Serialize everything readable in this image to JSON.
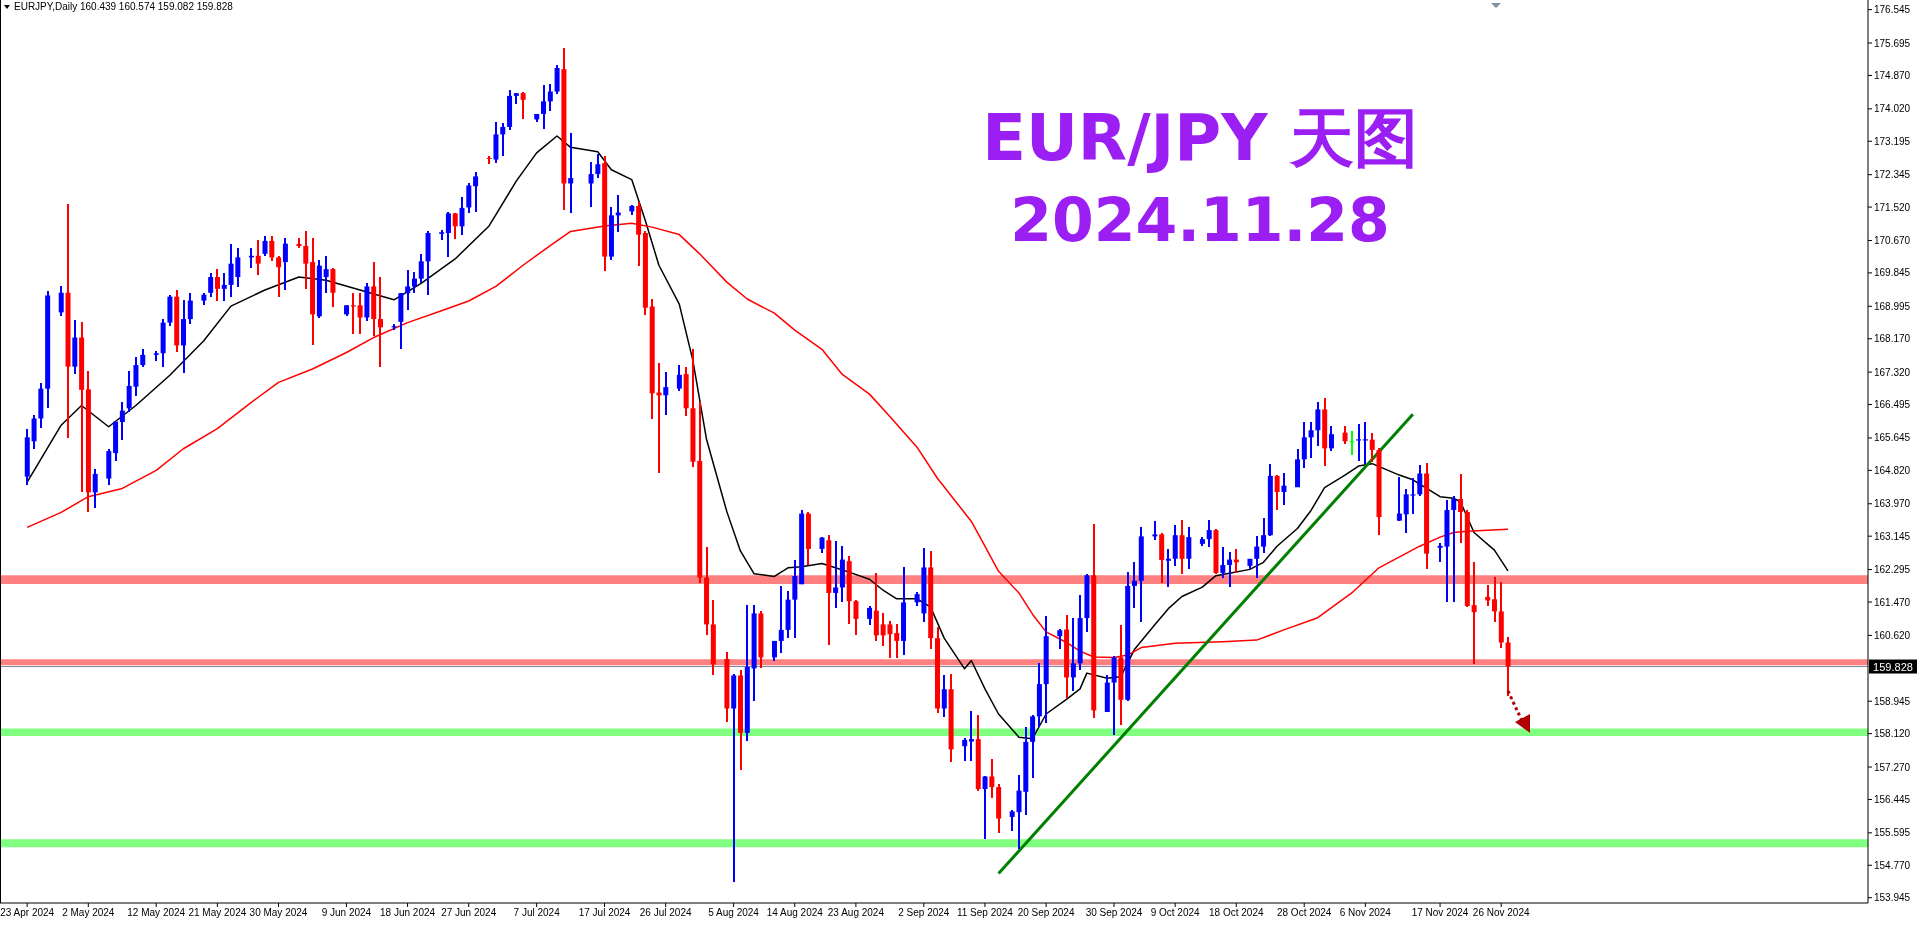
{
  "chart_data": {
    "type": "candlestick",
    "title": "EUR/JPY 天图",
    "subtitle": "2024.11.28",
    "annotations": [
      "EURJPY,Daily 160.439 160.574 159.082 159.828"
    ],
    "x": [
      "2024-04-23",
      "2024-04-24",
      "2024-04-25",
      "2024-04-26",
      "2024-04-28",
      "2024-04-29",
      "2024-04-30",
      "2024-05-01",
      "2024-05-02",
      "2024-05-03",
      "2024-05-05",
      "2024-05-06",
      "2024-05-07",
      "2024-05-08",
      "2024-05-09",
      "2024-05-10",
      "2024-05-12",
      "2024-05-13",
      "2024-05-14",
      "2024-05-15",
      "2024-05-16",
      "2024-05-17",
      "2024-05-19",
      "2024-05-20",
      "2024-05-21",
      "2024-05-22",
      "2024-05-23",
      "2024-05-24",
      "2024-05-26",
      "2024-05-27",
      "2024-05-28",
      "2024-05-29",
      "2024-05-30",
      "2024-05-31",
      "2024-06-02",
      "2024-06-03",
      "2024-06-04",
      "2024-06-05",
      "2024-06-06",
      "2024-06-07",
      "2024-06-09",
      "2024-06-10",
      "2024-06-11",
      "2024-06-12",
      "2024-06-13",
      "2024-06-14",
      "2024-06-16",
      "2024-06-17",
      "2024-06-18",
      "2024-06-19",
      "2024-06-20",
      "2024-06-21",
      "2024-06-23",
      "2024-06-24",
      "2024-06-25",
      "2024-06-26",
      "2024-06-27",
      "2024-06-28",
      "2024-06-30",
      "2024-07-01",
      "2024-07-02",
      "2024-07-03",
      "2024-07-04",
      "2024-07-05",
      "2024-07-07",
      "2024-07-08",
      "2024-07-09",
      "2024-07-10",
      "2024-07-11",
      "2024-07-12",
      "2024-07-15",
      "2024-07-16",
      "2024-07-17",
      "2024-07-18",
      "2024-07-19",
      "2024-07-21",
      "2024-07-22",
      "2024-07-23",
      "2024-07-24",
      "2024-07-25",
      "2024-07-26",
      "2024-07-28",
      "2024-07-29",
      "2024-07-30",
      "2024-07-31",
      "2024-08-01",
      "2024-08-02",
      "2024-08-04",
      "2024-08-05",
      "2024-08-06",
      "2024-08-07",
      "2024-08-08",
      "2024-08-09",
      "2024-08-11",
      "2024-08-12",
      "2024-08-13",
      "2024-08-14",
      "2024-08-15",
      "2024-08-16",
      "2024-08-18",
      "2024-08-19",
      "2024-08-20",
      "2024-08-21",
      "2024-08-22",
      "2024-08-23",
      "2024-08-25",
      "2024-08-26",
      "2024-08-27",
      "2024-08-28",
      "2024-08-29",
      "2024-08-30",
      "2024-09-01",
      "2024-09-02",
      "2024-09-03",
      "2024-09-04",
      "2024-09-05",
      "2024-09-06",
      "2024-09-08",
      "2024-09-09",
      "2024-09-10",
      "2024-09-11",
      "2024-09-12",
      "2024-09-13",
      "2024-09-15",
      "2024-09-16",
      "2024-09-17",
      "2024-09-18",
      "2024-09-19",
      "2024-09-20",
      "2024-09-22",
      "2024-09-23",
      "2024-09-24",
      "2024-09-25",
      "2024-09-26",
      "2024-09-27",
      "2024-09-29",
      "2024-09-30",
      "2024-10-01",
      "2024-10-02",
      "2024-10-03",
      "2024-10-04",
      "2024-10-06",
      "2024-10-07",
      "2024-10-08",
      "2024-10-09",
      "2024-10-10",
      "2024-10-11",
      "2024-10-13",
      "2024-10-14",
      "2024-10-15",
      "2024-10-16",
      "2024-10-17",
      "2024-10-18",
      "2024-10-20",
      "2024-10-21",
      "2024-10-22",
      "2024-10-23",
      "2024-10-24",
      "2024-10-25",
      "2024-10-27",
      "2024-10-28",
      "2024-10-29",
      "2024-10-30",
      "2024-10-31",
      "2024-11-01",
      "2024-11-03",
      "2024-11-04",
      "2024-11-05",
      "2024-11-06",
      "2024-11-07",
      "2024-11-08",
      "2024-11-11",
      "2024-11-12",
      "2024-11-13",
      "2024-11-14",
      "2024-11-15",
      "2024-11-17",
      "2024-11-18",
      "2024-11-19",
      "2024-11-20",
      "2024-11-21",
      "2024-11-22",
      "2024-11-24",
      "2024-11-25",
      "2024-11-26",
      "2024-11-27"
    ],
    "ohlc": [
      [
        164.66,
        165.88,
        164.46,
        165.66
      ],
      [
        165.56,
        166.22,
        165.36,
        166.14
      ],
      [
        166.14,
        167.05,
        165.9,
        166.9
      ],
      [
        166.9,
        169.39,
        166.4,
        169.27
      ],
      [
        168.84,
        169.51,
        168.74,
        169.34
      ],
      [
        169.34,
        171.61,
        165.64,
        167.46
      ],
      [
        167.46,
        168.64,
        167.26,
        168.2
      ],
      [
        168.2,
        168.6,
        164.26,
        166.87
      ],
      [
        166.88,
        167.35,
        163.76,
        164.26
      ],
      [
        164.26,
        164.86,
        163.86,
        164.73
      ],
      [
        164.61,
        165.36,
        164.46,
        165.31
      ],
      [
        165.26,
        166.06,
        165.06,
        166.06
      ],
      [
        166.05,
        166.55,
        165.6,
        166.34
      ],
      [
        166.4,
        167.35,
        166.3,
        166.97
      ],
      [
        166.95,
        167.7,
        166.7,
        167.5
      ],
      [
        167.5,
        167.92,
        167.46,
        167.76
      ],
      [
        167.76,
        167.85,
        167.6,
        167.8
      ],
      [
        167.8,
        168.67,
        167.46,
        168.58
      ],
      [
        168.58,
        169.29,
        168.5,
        169.24
      ],
      [
        169.24,
        169.41,
        167.84,
        168.0
      ],
      [
        168.0,
        169.16,
        167.3,
        168.67
      ],
      [
        168.67,
        169.34,
        168.54,
        169.14
      ],
      [
        169.14,
        169.34,
        169.04,
        169.29
      ],
      [
        169.34,
        169.83,
        169.24,
        169.74
      ],
      [
        169.74,
        169.94,
        169.14,
        169.44
      ],
      [
        169.44,
        169.84,
        169.14,
        169.54
      ],
      [
        169.54,
        170.58,
        169.24,
        170.08
      ],
      [
        169.74,
        170.48,
        169.49,
        170.24
      ],
      [
        170.24,
        170.48,
        169.98,
        170.28
      ],
      [
        170.28,
        170.68,
        169.78,
        170.08
      ],
      [
        170.33,
        170.78,
        170.28,
        170.66
      ],
      [
        170.66,
        170.78,
        170.16,
        170.24
      ],
      [
        170.24,
        170.28,
        169.24,
        169.99
      ],
      [
        170.12,
        170.74,
        169.41,
        170.59
      ],
      [
        170.58,
        170.73,
        170.48,
        170.53
      ],
      [
        170.53,
        170.9,
        169.44,
        170.08
      ],
      [
        170.12,
        170.74,
        168.0,
        168.79
      ],
      [
        168.74,
        170.18,
        168.69,
        170.03
      ],
      [
        169.74,
        170.28,
        169.34,
        169.94
      ],
      [
        169.94,
        169.98,
        168.99,
        169.34
      ],
      [
        168.79,
        169.04,
        168.74,
        169.02
      ],
      [
        169.02,
        169.34,
        168.29,
        168.99
      ],
      [
        169.02,
        169.34,
        168.29,
        168.71
      ],
      [
        168.71,
        169.58,
        168.62,
        169.5
      ],
      [
        169.5,
        170.12,
        168.25,
        168.67
      ],
      [
        168.67,
        169.74,
        167.46,
        168.46
      ],
      [
        168.46,
        168.54,
        168.39,
        168.49
      ],
      [
        168.6,
        169.33,
        167.92,
        169.33
      ],
      [
        169.33,
        169.91,
        168.91,
        169.5
      ],
      [
        169.5,
        169.87,
        169.33,
        169.7
      ],
      [
        169.7,
        170.32,
        169.58,
        170.14
      ],
      [
        170.14,
        170.91,
        169.29,
        170.86
      ],
      [
        170.84,
        170.93,
        170.68,
        170.88
      ],
      [
        170.86,
        171.4,
        170.24,
        171.36
      ],
      [
        171.36,
        171.38,
        170.7,
        171.03
      ],
      [
        171.03,
        171.78,
        170.82,
        171.5
      ],
      [
        171.51,
        172.13,
        171.36,
        172.07
      ],
      [
        172.05,
        172.42,
        171.4,
        172.3
      ],
      [
        172.77,
        172.82,
        172.62,
        172.76
      ],
      [
        172.73,
        173.69,
        172.65,
        173.37
      ],
      [
        173.37,
        173.67,
        172.82,
        173.56
      ],
      [
        173.56,
        174.5,
        173.48,
        174.35
      ],
      [
        174.35,
        174.43,
        174.15,
        174.42
      ],
      [
        174.42,
        174.46,
        173.75,
        174.25
      ],
      [
        173.75,
        173.89,
        173.69,
        173.89
      ],
      [
        173.89,
        174.63,
        173.5,
        174.21
      ],
      [
        174.21,
        174.64,
        173.96,
        174.46
      ],
      [
        174.46,
        175.14,
        174.39,
        175.06
      ],
      [
        175.03,
        175.57,
        171.45,
        172.12
      ],
      [
        172.12,
        173.41,
        171.38,
        172.26
      ],
      [
        172.12,
        172.67,
        171.52,
        172.36
      ],
      [
        172.36,
        172.86,
        172.26,
        172.61
      ],
      [
        172.64,
        172.82,
        169.9,
        170.26
      ],
      [
        170.26,
        171.52,
        170.18,
        171.31
      ],
      [
        171.31,
        171.83,
        170.88,
        171.38
      ],
      [
        171.41,
        171.58,
        171.33,
        171.55
      ],
      [
        171.55,
        171.66,
        170.01,
        170.82
      ],
      [
        170.86,
        170.92,
        168.78,
        168.96
      ],
      [
        168.99,
        169.17,
        166.13,
        166.78
      ],
      [
        166.8,
        167.55,
        164.76,
        166.73
      ],
      [
        166.73,
        167.32,
        166.23,
        166.94
      ],
      [
        166.9,
        167.5,
        166.85,
        167.25
      ],
      [
        167.27,
        167.45,
        166.2,
        166.4
      ],
      [
        166.4,
        167.91,
        164.9,
        165.04
      ],
      [
        165.06,
        166.55,
        161.95,
        162.09
      ],
      [
        162.09,
        162.87,
        160.62,
        160.9
      ],
      [
        160.9,
        161.53,
        159.6,
        159.88
      ],
      [
        160.02,
        160.19,
        158.41,
        158.76
      ],
      [
        158.76,
        159.64,
        154.35,
        159.6
      ],
      [
        159.6,
        159.74,
        157.2,
        158.14
      ],
      [
        158.14,
        161.39,
        157.94,
        159.82
      ],
      [
        159.78,
        161.39,
        158.94,
        161.18
      ],
      [
        161.18,
        161.23,
        159.78,
        160.06
      ],
      [
        160.06,
        160.48,
        159.98,
        160.48
      ],
      [
        160.48,
        161.88,
        160.18,
        160.76
      ],
      [
        160.76,
        161.74,
        160.55,
        161.53
      ],
      [
        161.53,
        162.55,
        160.55,
        162.13
      ],
      [
        161.92,
        163.81,
        161.92,
        163.72
      ],
      [
        163.72,
        163.77,
        162.41,
        162.82
      ],
      [
        162.82,
        163.12,
        162.72,
        163.11
      ],
      [
        163.04,
        163.18,
        160.37,
        161.7
      ],
      [
        161.7,
        163.02,
        161.32,
        161.84
      ],
      [
        161.84,
        162.9,
        161.46,
        162.55
      ],
      [
        162.51,
        162.65,
        160.9,
        161.49
      ],
      [
        161.49,
        161.53,
        160.62,
        161.04
      ],
      [
        161.04,
        161.38,
        160.88,
        161.32
      ],
      [
        161.25,
        162.2,
        160.48,
        160.62
      ],
      [
        160.9,
        161.18,
        160.34,
        160.62
      ],
      [
        160.9,
        160.98,
        160.04,
        160.65
      ],
      [
        160.68,
        160.9,
        160.04,
        160.48
      ],
      [
        160.48,
        162.35,
        160.12,
        161.46
      ],
      [
        161.46,
        161.73,
        161.38,
        161.67
      ],
      [
        161.18,
        162.85,
        160.97,
        162.35
      ],
      [
        162.35,
        162.76,
        160.28,
        160.55
      ],
      [
        160.55,
        160.83,
        158.64,
        158.76
      ],
      [
        158.76,
        159.6,
        158.54,
        159.25
      ],
      [
        159.25,
        159.63,
        157.4,
        157.72
      ],
      [
        157.8,
        158.02,
        157.42,
        157.96
      ],
      [
        157.92,
        158.69,
        157.43,
        157.98
      ],
      [
        157.98,
        158.6,
        156.65,
        156.71
      ],
      [
        156.71,
        157.05,
        155.45,
        157.03
      ],
      [
        157.03,
        157.47,
        156.49,
        156.76
      ],
      [
        156.76,
        156.85,
        155.58,
        155.96
      ],
      [
        156.0,
        156.18,
        155.63,
        156.14
      ],
      [
        156.12,
        157.07,
        155.18,
        156.67
      ],
      [
        156.64,
        158.29,
        156.04,
        157.91
      ],
      [
        157.91,
        158.6,
        157.0,
        158.56
      ],
      [
        158.56,
        159.91,
        158.29,
        159.38
      ],
      [
        159.38,
        161.11,
        158.39,
        160.6
      ],
      [
        160.6,
        160.78,
        160.28,
        160.75
      ],
      [
        160.77,
        161.15,
        159.02,
        159.55
      ],
      [
        159.55,
        161.06,
        159.2,
        159.91
      ],
      [
        159.91,
        161.64,
        159.74,
        161.06
      ],
      [
        161.06,
        162.18,
        160.71,
        162.15
      ],
      [
        162.15,
        163.46,
        158.53,
        158.71
      ],
      [
        158.67,
        159.6,
        158.67,
        159.42
      ],
      [
        159.42,
        160.09,
        158.09,
        160.06
      ],
      [
        160.06,
        160.88,
        158.35,
        158.98
      ],
      [
        158.98,
        162.24,
        158.94,
        161.88
      ],
      [
        161.88,
        162.48,
        161.33,
        162.01
      ],
      [
        162.01,
        163.37,
        160.97,
        163.14
      ],
      [
        163.14,
        163.54,
        163.04,
        163.19
      ],
      [
        163.19,
        163.22,
        161.95,
        162.54
      ],
      [
        162.52,
        162.83,
        161.86,
        162.57
      ],
      [
        162.57,
        163.43,
        162.39,
        163.17
      ],
      [
        163.17,
        163.56,
        162.17,
        162.57
      ],
      [
        162.57,
        163.37,
        162.3,
        163.12
      ],
      [
        162.95,
        163.12,
        162.9,
        163.07
      ],
      [
        163.07,
        163.56,
        162.88,
        163.3
      ],
      [
        163.3,
        163.32,
        162.17,
        162.21
      ],
      [
        162.21,
        162.88,
        162.08,
        162.41
      ],
      [
        162.41,
        162.74,
        161.86,
        162.55
      ],
      [
        162.55,
        162.81,
        162.21,
        162.48
      ],
      [
        162.39,
        162.57,
        162.32,
        162.57
      ],
      [
        162.57,
        163.14,
        162.08,
        162.88
      ],
      [
        162.88,
        163.62,
        162.72,
        163.17
      ],
      [
        163.17,
        164.99,
        163.14,
        164.68
      ],
      [
        164.68,
        164.7,
        163.81,
        164.27
      ],
      [
        164.27,
        164.76,
        163.94,
        164.43
      ],
      [
        164.39,
        165.36,
        164.39,
        165.1
      ],
      [
        165.1,
        166.06,
        164.87,
        165.66
      ],
      [
        165.66,
        166.06,
        165.14,
        165.84
      ],
      [
        165.84,
        166.57,
        165.45,
        166.37
      ],
      [
        166.37,
        166.66,
        164.92,
        165.38
      ],
      [
        165.38,
        165.96,
        165.32,
        165.74
      ],
      [
        165.78,
        165.94,
        165.48,
        165.56
      ],
      [
        165.56,
        165.83,
        165.2,
        165.56
      ],
      [
        165.58,
        166.0,
        165.07,
        165.61
      ],
      [
        165.58,
        166.06,
        164.98,
        165.61
      ],
      [
        165.6,
        165.78,
        165.03,
        165.34
      ],
      [
        165.34,
        165.38,
        163.18,
        163.63
      ],
      [
        163.54,
        164.65,
        163.54,
        163.72
      ],
      [
        163.7,
        164.34,
        163.23,
        164.21
      ],
      [
        164.18,
        164.63,
        163.72,
        164.21
      ],
      [
        164.21,
        164.96,
        164.16,
        164.74
      ],
      [
        164.74,
        165.01,
        162.3,
        162.7
      ],
      [
        162.85,
        162.97,
        162.5,
        162.9
      ],
      [
        162.88,
        164.07,
        161.48,
        163.81
      ],
      [
        163.81,
        164.16,
        161.46,
        164.09
      ],
      [
        164.09,
        164.74,
        162.97,
        163.76
      ],
      [
        163.76,
        163.81,
        161.35,
        161.37
      ],
      [
        161.39,
        162.48,
        159.9,
        161.21
      ],
      [
        161.6,
        161.9,
        161.38,
        161.51
      ],
      [
        161.54,
        162.1,
        160.96,
        161.23
      ],
      [
        161.23,
        161.99,
        160.3,
        160.44
      ],
      [
        160.439,
        160.574,
        159.082,
        159.828
      ]
    ],
    "colors": [
      "#0000ff",
      "#0000ff",
      "#0000ff",
      "#0000ff",
      "#0000ff",
      "#ff0000",
      "#0000ff",
      "#ff0000",
      "#ff0000",
      "#0000ff",
      "#0000ff",
      "#0000ff",
      "#0000ff",
      "#0000ff",
      "#0000ff",
      "#0000ff",
      "#0000ff",
      "#0000ff",
      "#0000ff",
      "#ff0000",
      "#0000ff",
      "#0000ff",
      "#0000ff",
      "#0000ff",
      "#ff0000",
      "#0000ff",
      "#0000ff",
      "#0000ff",
      "#0000ff",
      "#ff0000",
      "#0000ff",
      "#ff0000",
      "#ff0000",
      "#0000ff",
      "#ff0000",
      "#ff0000",
      "#ff0000",
      "#0000ff",
      "#0000ff",
      "#ff0000",
      "#0000ff",
      "#ff0000",
      "#ff0000",
      "#0000ff",
      "#ff0000",
      "#ff0000",
      "#0000ff",
      "#0000ff",
      "#0000ff",
      "#0000ff",
      "#0000ff",
      "#0000ff",
      "#0000ff",
      "#0000ff",
      "#ff0000",
      "#0000ff",
      "#0000ff",
      "#0000ff",
      "#ff0000",
      "#0000ff",
      "#0000ff",
      "#0000ff",
      "#0000ff",
      "#ff0000",
      "#0000ff",
      "#0000ff",
      "#0000ff",
      "#0000ff",
      "#ff0000",
      "#0000ff",
      "#0000ff",
      "#0000ff",
      "#ff0000",
      "#0000ff",
      "#0000ff",
      "#0000ff",
      "#ff0000",
      "#ff0000",
      "#ff0000",
      "#ff0000",
      "#0000ff",
      "#0000ff",
      "#ff0000",
      "#ff0000",
      "#ff0000",
      "#ff0000",
      "#ff0000",
      "#ff0000",
      "#0000ff",
      "#ff0000",
      "#0000ff",
      "#0000ff",
      "#ff0000",
      "#0000ff",
      "#0000ff",
      "#0000ff",
      "#0000ff",
      "#0000ff",
      "#ff0000",
      "#0000ff",
      "#ff0000",
      "#0000ff",
      "#0000ff",
      "#ff0000",
      "#ff0000",
      "#0000ff",
      "#ff0000",
      "#ff0000",
      "#ff0000",
      "#ff0000",
      "#0000ff",
      "#0000ff",
      "#0000ff",
      "#ff0000",
      "#ff0000",
      "#0000ff",
      "#ff0000",
      "#0000ff",
      "#0000ff",
      "#ff0000",
      "#0000ff",
      "#ff0000",
      "#ff0000",
      "#0000ff",
      "#0000ff",
      "#0000ff",
      "#0000ff",
      "#0000ff",
      "#0000ff",
      "#0000ff",
      "#ff0000",
      "#0000ff",
      "#0000ff",
      "#0000ff",
      "#ff0000",
      "#0000ff",
      "#0000ff",
      "#ff0000",
      "#0000ff",
      "#0000ff",
      "#0000ff",
      "#0000ff",
      "#ff0000",
      "#0000ff",
      "#0000ff",
      "#ff0000",
      "#0000ff",
      "#0000ff",
      "#0000ff",
      "#ff0000",
      "#0000ff",
      "#0000ff",
      "#ff0000",
      "#0000ff",
      "#0000ff",
      "#0000ff",
      "#0000ff",
      "#ff0000",
      "#0000ff",
      "#0000ff",
      "#0000ff",
      "#0000ff",
      "#0000ff",
      "#ff0000",
      "#0000ff",
      "#ff0000",
      "#00ff00",
      "#0000ff",
      "#0000ff",
      "#ff0000",
      "#ff0000",
      "#0000ff",
      "#0000ff",
      "#0000ff",
      "#0000ff",
      "#ff0000",
      "#0000ff",
      "#0000ff",
      "#0000ff",
      "#ff0000",
      "#ff0000",
      "#ff0000",
      "#ff0000",
      "#ff0000",
      "#ff0000",
      "#ff0000"
    ],
    "series": [
      {
        "type": "line",
        "color": "#000000",
        "x": [
          "2024-04-23",
          "2024-04-28",
          "2024-05-01",
          "2024-05-05",
          "2024-05-09",
          "2024-05-14",
          "2024-05-19",
          "2024-05-23",
          "2024-05-28",
          "2024-06-02",
          "2024-06-06",
          "2024-06-11",
          "2024-06-16",
          "2024-06-20",
          "2024-06-25",
          "2024-06-30",
          "2024-07-04",
          "2024-07-07",
          "2024-07-10",
          "2024-07-12",
          "2024-07-16",
          "2024-07-18",
          "2024-07-21",
          "2024-07-23",
          "2024-07-25",
          "2024-07-28",
          "2024-07-30",
          "2024-08-01",
          "2024-08-04",
          "2024-08-06",
          "2024-08-08",
          "2024-08-11",
          "2024-08-13",
          "2024-08-15",
          "2024-08-18",
          "2024-08-20",
          "2024-08-22",
          "2024-08-25",
          "2024-08-27",
          "2024-08-29",
          "2024-09-01",
          "2024-09-03",
          "2024-09-05",
          "2024-09-08",
          "2024-09-09",
          "2024-09-11",
          "2024-09-13",
          "2024-09-16",
          "2024-09-18",
          "2024-09-20",
          "2024-09-23",
          "2024-09-25",
          "2024-09-26",
          "2024-09-29",
          "2024-10-01",
          "2024-10-03",
          "2024-10-06",
          "2024-10-08",
          "2024-10-10",
          "2024-10-13",
          "2024-10-15",
          "2024-10-17",
          "2024-10-20",
          "2024-10-22",
          "2024-10-24",
          "2024-10-27",
          "2024-10-29",
          "2024-10-31",
          "2024-11-03",
          "2024-11-05",
          "2024-11-07",
          "2024-11-11",
          "2024-11-13",
          "2024-11-17",
          "2024-11-19",
          "2024-11-20",
          "2024-11-22",
          "2024-11-25",
          "2024-11-27"
        ],
        "values": [
          164.52,
          165.97,
          166.47,
          165.93,
          166.47,
          167.24,
          168.12,
          169.0,
          169.41,
          169.74,
          169.66,
          169.41,
          169.16,
          169.58,
          170.2,
          171.04,
          172.18,
          172.9,
          173.33,
          173.04,
          172.93,
          172.47,
          172.22,
          171.18,
          170.04,
          169.05,
          167.62,
          165.62,
          163.77,
          162.77,
          162.19,
          162.12,
          162.34,
          162.37,
          162.45,
          162.34,
          162.23,
          162.05,
          161.77,
          161.55,
          161.55,
          161.34,
          160.55,
          159.77,
          159.98,
          159.26,
          158.62,
          158.03,
          157.99,
          158.62,
          158.99,
          159.26,
          159.66,
          159.53,
          159.57,
          160.26,
          160.89,
          161.3,
          161.61,
          161.85,
          162.14,
          162.2,
          162.3,
          162.48,
          162.89,
          163.34,
          163.8,
          164.38,
          164.7,
          164.93,
          164.99,
          164.7,
          164.58,
          164.15,
          164.11,
          164.02,
          163.24,
          162.79,
          162.26
        ]
      },
      {
        "type": "line",
        "color": "#ff0000",
        "x": [
          "2024-04-23",
          "2024-04-28",
          "2024-05-02",
          "2024-05-07",
          "2024-05-12",
          "2024-05-16",
          "2024-05-21",
          "2024-05-26",
          "2024-05-30",
          "2024-06-04",
          "2024-06-09",
          "2024-06-13",
          "2024-06-18",
          "2024-06-23",
          "2024-06-27",
          "2024-07-01",
          "2024-07-05",
          "2024-07-09",
          "2024-07-12",
          "2024-07-17",
          "2024-07-21",
          "2024-07-24",
          "2024-07-28",
          "2024-07-31",
          "2024-08-04",
          "2024-08-07",
          "2024-08-11",
          "2024-08-14",
          "2024-08-18",
          "2024-08-21",
          "2024-08-25",
          "2024-08-28",
          "2024-09-01",
          "2024-09-04",
          "2024-09-09",
          "2024-09-11",
          "2024-09-13",
          "2024-09-16",
          "2024-09-18",
          "2024-09-20",
          "2024-09-23",
          "2024-09-25",
          "2024-09-27",
          "2024-09-30",
          "2024-10-02",
          "2024-10-04",
          "2024-10-09",
          "2024-10-16",
          "2024-10-21",
          "2024-10-25",
          "2024-10-30",
          "2024-11-04",
          "2024-11-08",
          "2024-11-14",
          "2024-11-17",
          "2024-11-19",
          "2024-11-21",
          "2024-11-27"
        ],
        "values": [
          163.37,
          163.75,
          164.15,
          164.36,
          164.82,
          165.37,
          165.88,
          166.55,
          167.06,
          167.4,
          167.82,
          168.2,
          168.58,
          168.88,
          169.13,
          169.5,
          170.04,
          170.54,
          170.9,
          171.04,
          171.11,
          171.01,
          170.82,
          170.33,
          169.61,
          169.18,
          168.82,
          168.39,
          167.9,
          167.26,
          166.76,
          166.19,
          165.41,
          164.62,
          163.52,
          162.89,
          162.25,
          161.7,
          161.16,
          160.71,
          160.44,
          160.22,
          160.07,
          160.06,
          160.12,
          160.31,
          160.42,
          160.46,
          160.5,
          160.76,
          161.07,
          161.7,
          162.34,
          162.89,
          163.12,
          163.24,
          163.27,
          163.32
        ]
      },
      {
        "type": "line",
        "color": "#008000",
        "x": [
          "2024-09-13",
          "2024-11-13"
        ],
        "values": [
          154.56,
          166.25
        ]
      }
    ],
    "bands": [
      {
        "axis": "y",
        "from": 161.93,
        "to": 162.15,
        "color": "#ff8080"
      },
      {
        "axis": "y",
        "from": 159.86,
        "to": 160.01,
        "color": "#ff8080"
      },
      {
        "axis": "y",
        "from": 158.06,
        "to": 158.25,
        "color": "#80ff80"
      },
      {
        "axis": "y",
        "from": 155.23,
        "to": 155.43,
        "color": "#80ff80"
      }
    ],
    "ref_lines": [
      {
        "axis": "y",
        "value": 159.828,
        "label": "159.828",
        "color": "#778899"
      }
    ],
    "xlim": [
      "2024-04-19",
      "2025-01-19"
    ],
    "ylim": [
      153.81,
      176.79
    ],
    "yticks": [
      176.545,
      175.695,
      {
        "value": 174.87,
        "label": "174.870"
      },
      {
        "value": 174.02,
        "label": "174.020"
      },
      173.195,
      172.345,
      {
        "value": 171.52,
        "label": "171.520"
      },
      {
        "value": 170.67,
        "label": "170.670"
      },
      169.845,
      168.995,
      {
        "value": 168.17,
        "label": "168.170"
      },
      {
        "value": 167.32,
        "label": "167.320"
      },
      166.495,
      165.645,
      {
        "value": 164.82,
        "label": "164.820"
      },
      {
        "value": 163.97,
        "label": "163.970"
      },
      163.145,
      162.295,
      {
        "value": 161.47,
        "label": "161.470"
      },
      {
        "value": 160.62,
        "label": "160.620"
      },
      158.945,
      {
        "value": 158.12,
        "label": "158.120"
      },
      {
        "value": 157.27,
        "label": "157.270"
      },
      156.445,
      155.595,
      {
        "value": 154.77,
        "label": "154.770"
      },
      153.945
    ],
    "xticks": [
      {
        "value": "2024-04-23",
        "label": "23 Apr 2024"
      },
      {
        "value": "2024-05-02",
        "label": "2 May 2024"
      },
      {
        "value": "2024-05-12",
        "label": "12 May 2024"
      },
      {
        "value": "2024-05-21",
        "label": "21 May 2024"
      },
      {
        "value": "2024-05-30",
        "label": "30 May 2024"
      },
      {
        "value": "2024-06-09",
        "label": "9 Jun 2024"
      },
      {
        "value": "2024-06-18",
        "label": "18 Jun 2024"
      },
      {
        "value": "2024-06-27",
        "label": "27 Jun 2024"
      },
      {
        "value": "2024-07-07",
        "label": "7 Jul 2024"
      },
      {
        "value": "2024-07-17",
        "label": "17 Jul 2024"
      },
      {
        "value": "2024-07-26",
        "label": "26 Jul 2024"
      },
      {
        "value": "2024-08-05",
        "label": "5 Aug 2024"
      },
      {
        "value": "2024-08-14",
        "label": "14 Aug 2024"
      },
      {
        "value": "2024-08-23",
        "label": "23 Aug 2024"
      },
      {
        "value": "2024-09-02",
        "label": "2 Sep 2024"
      },
      {
        "value": "2024-09-11",
        "label": "11 Sep 2024"
      },
      {
        "value": "2024-09-20",
        "label": "20 Sep 2024"
      },
      {
        "value": "2024-09-30",
        "label": "30 Sep 2024"
      },
      {
        "value": "2024-10-09",
        "label": "9 Oct 2024"
      },
      {
        "value": "2024-10-18",
        "label": "18 Oct 2024"
      },
      {
        "value": "2024-10-28",
        "label": "28 Oct 2024"
      },
      {
        "value": "2024-11-06",
        "label": "6 Nov 2024"
      },
      {
        "value": "2024-11-17",
        "label": "17 Nov 2024"
      },
      {
        "value": "2024-11-26",
        "label": "26 Nov 2024"
      }
    ]
  }
}
